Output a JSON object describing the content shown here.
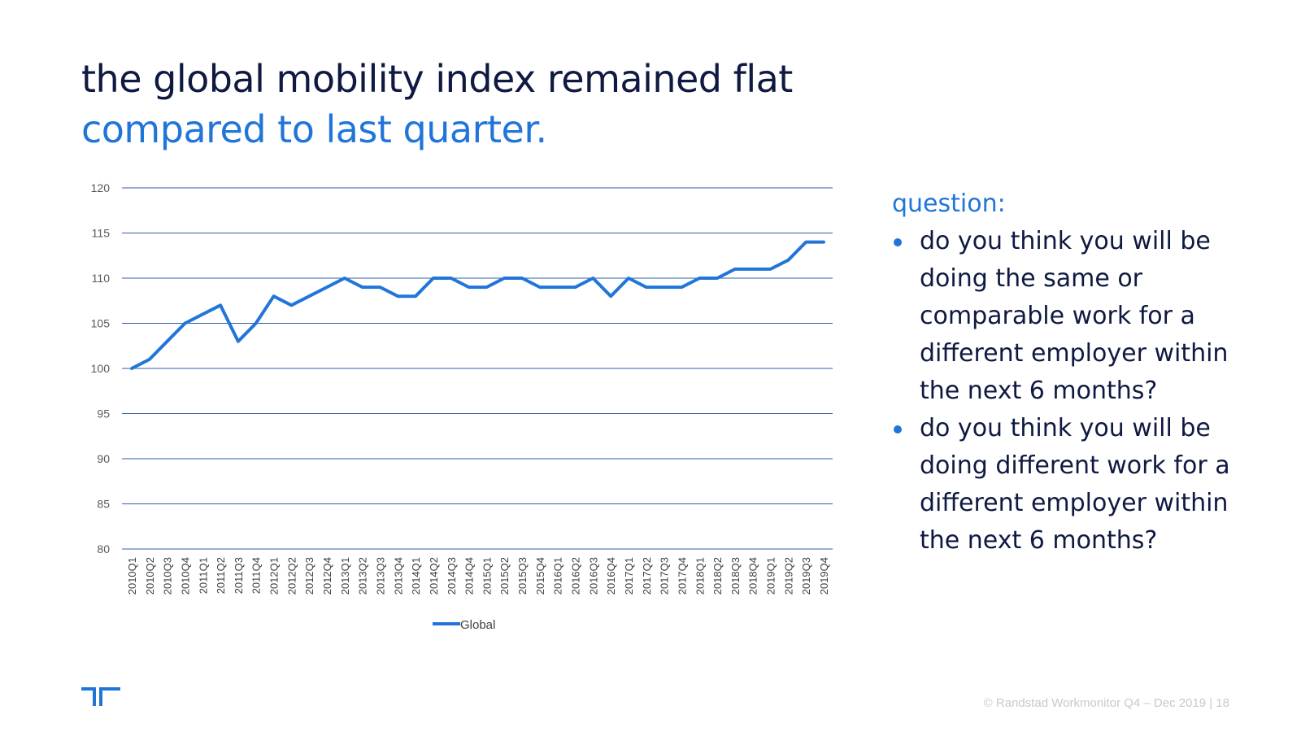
{
  "header": {
    "title_line1": "the global mobility index remained flat",
    "title_line2": "compared to last quarter."
  },
  "side": {
    "question_label": "question:",
    "bullets": [
      "do you think you will be doing the same or comparable work for a different employer within the next 6 months?",
      "do you think you will be doing different work for a different employer within the next 6 months?"
    ]
  },
  "footer": {
    "text": "© Randstad Workmonitor Q4 – Dec 2019 |  18"
  },
  "logo": {
    "icon": "randstad-logo-icon"
  },
  "colors": {
    "line": "#2175d9",
    "grid": "#2f5fa8",
    "title": "#0f1941",
    "accent": "#2175d9"
  },
  "chart_data": {
    "type": "line",
    "title": "",
    "xlabel": "",
    "ylabel": "",
    "ylim": [
      80,
      120
    ],
    "yticks": [
      80,
      85,
      90,
      95,
      100,
      105,
      110,
      115,
      120
    ],
    "grid": true,
    "legend_position": "bottom",
    "categories": [
      "2010Q1",
      "2010Q2",
      "2010Q3",
      "2010Q4",
      "2011Q1",
      "2011Q2",
      "2011Q3",
      "2011Q4",
      "2012Q1",
      "2012Q2",
      "2012Q3",
      "2012Q4",
      "2013Q1",
      "2013Q2",
      "2013Q3",
      "2013Q4",
      "2014Q1",
      "2014Q2",
      "2014Q3",
      "2014Q4",
      "2015Q1",
      "2015Q2",
      "2015Q3",
      "2015Q4",
      "2016Q1",
      "2016Q2",
      "2016Q3",
      "2016Q4",
      "2017Q1",
      "2017Q2",
      "2017Q3",
      "2017Q4",
      "2018Q1",
      "2018Q2",
      "2018Q3",
      "2018Q4",
      "2019Q1",
      "2019Q2",
      "2019Q3",
      "2019Q4"
    ],
    "series": [
      {
        "name": "Global",
        "values": [
          100,
          101,
          103,
          105,
          106,
          107,
          103,
          105,
          108,
          107,
          108,
          109,
          110,
          109,
          109,
          108,
          108,
          110,
          110,
          109,
          109,
          110,
          110,
          109,
          109,
          109,
          110,
          108,
          110,
          109,
          109,
          109,
          110,
          110,
          111,
          111,
          111,
          112,
          114,
          114
        ]
      }
    ]
  }
}
